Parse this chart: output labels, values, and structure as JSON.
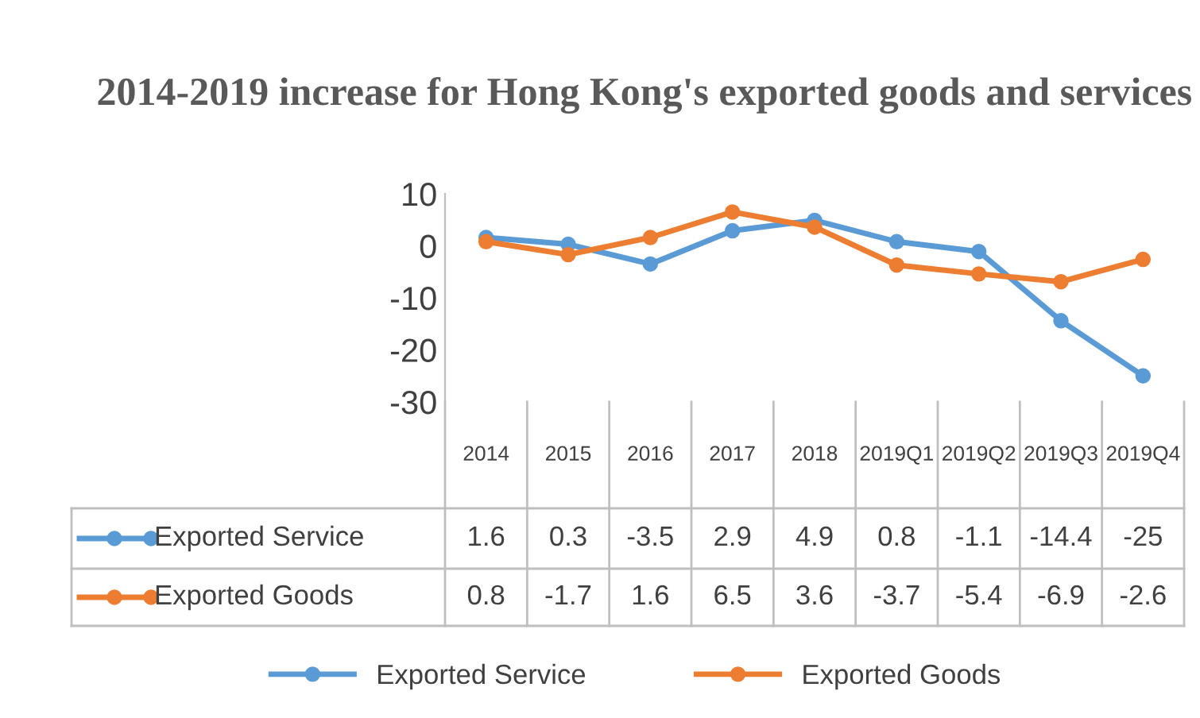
{
  "chart_data": {
    "type": "line",
    "title": "2014-2019 increase for Hong Kong's exported goods and services",
    "categories": [
      "2014",
      "2015",
      "2016",
      "2017",
      "2018",
      "2019Q1",
      "2019Q2",
      "2019Q3",
      "2019Q4"
    ],
    "series": [
      {
        "name": "Exported Service",
        "color": "#5b9bd5",
        "values": [
          1.6,
          0.3,
          -3.5,
          2.9,
          4.9,
          0.8,
          -1.1,
          -14.4,
          -25
        ]
      },
      {
        "name": "Exported Goods",
        "color": "#ed7d31",
        "values": [
          0.8,
          -1.7,
          1.6,
          6.5,
          3.6,
          -3.7,
          -5.4,
          -6.9,
          -2.6
        ]
      }
    ],
    "ylim": [
      -30,
      10
    ],
    "yticks": [
      -30,
      -20,
      -10,
      0,
      10
    ],
    "grid": false,
    "legend": "bottom",
    "marker": "circle",
    "line_style": "solid",
    "data_labels": true
  }
}
